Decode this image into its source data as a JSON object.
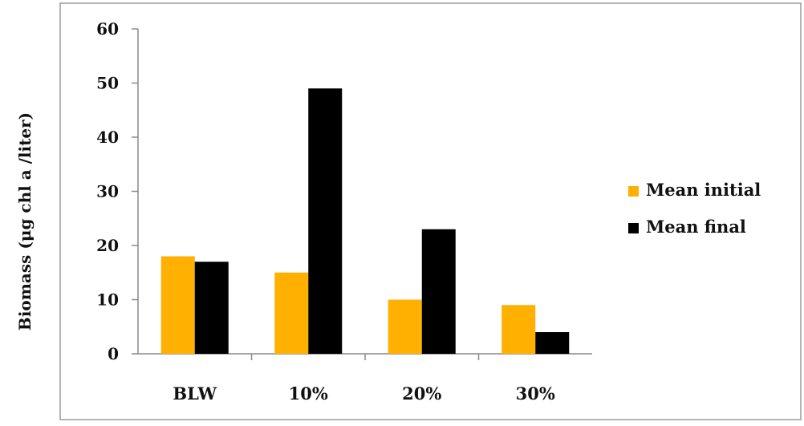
{
  "chart_data": {
    "type": "bar",
    "title": "",
    "xlabel": "",
    "ylabel": "Biomass (μg chl a /liter)",
    "categories": [
      "BLW",
      "10%",
      "20%",
      "30%"
    ],
    "series": [
      {
        "name": "Mean initial",
        "values": [
          18,
          15,
          10,
          9
        ],
        "color": "#FFB000"
      },
      {
        "name": "Mean final",
        "values": [
          17,
          49,
          23,
          4
        ],
        "color": "#000000"
      }
    ],
    "ylim": [
      0,
      60
    ],
    "yticks": [
      0,
      10,
      20,
      30,
      40,
      50,
      60
    ],
    "grid": false,
    "legend": "right"
  }
}
